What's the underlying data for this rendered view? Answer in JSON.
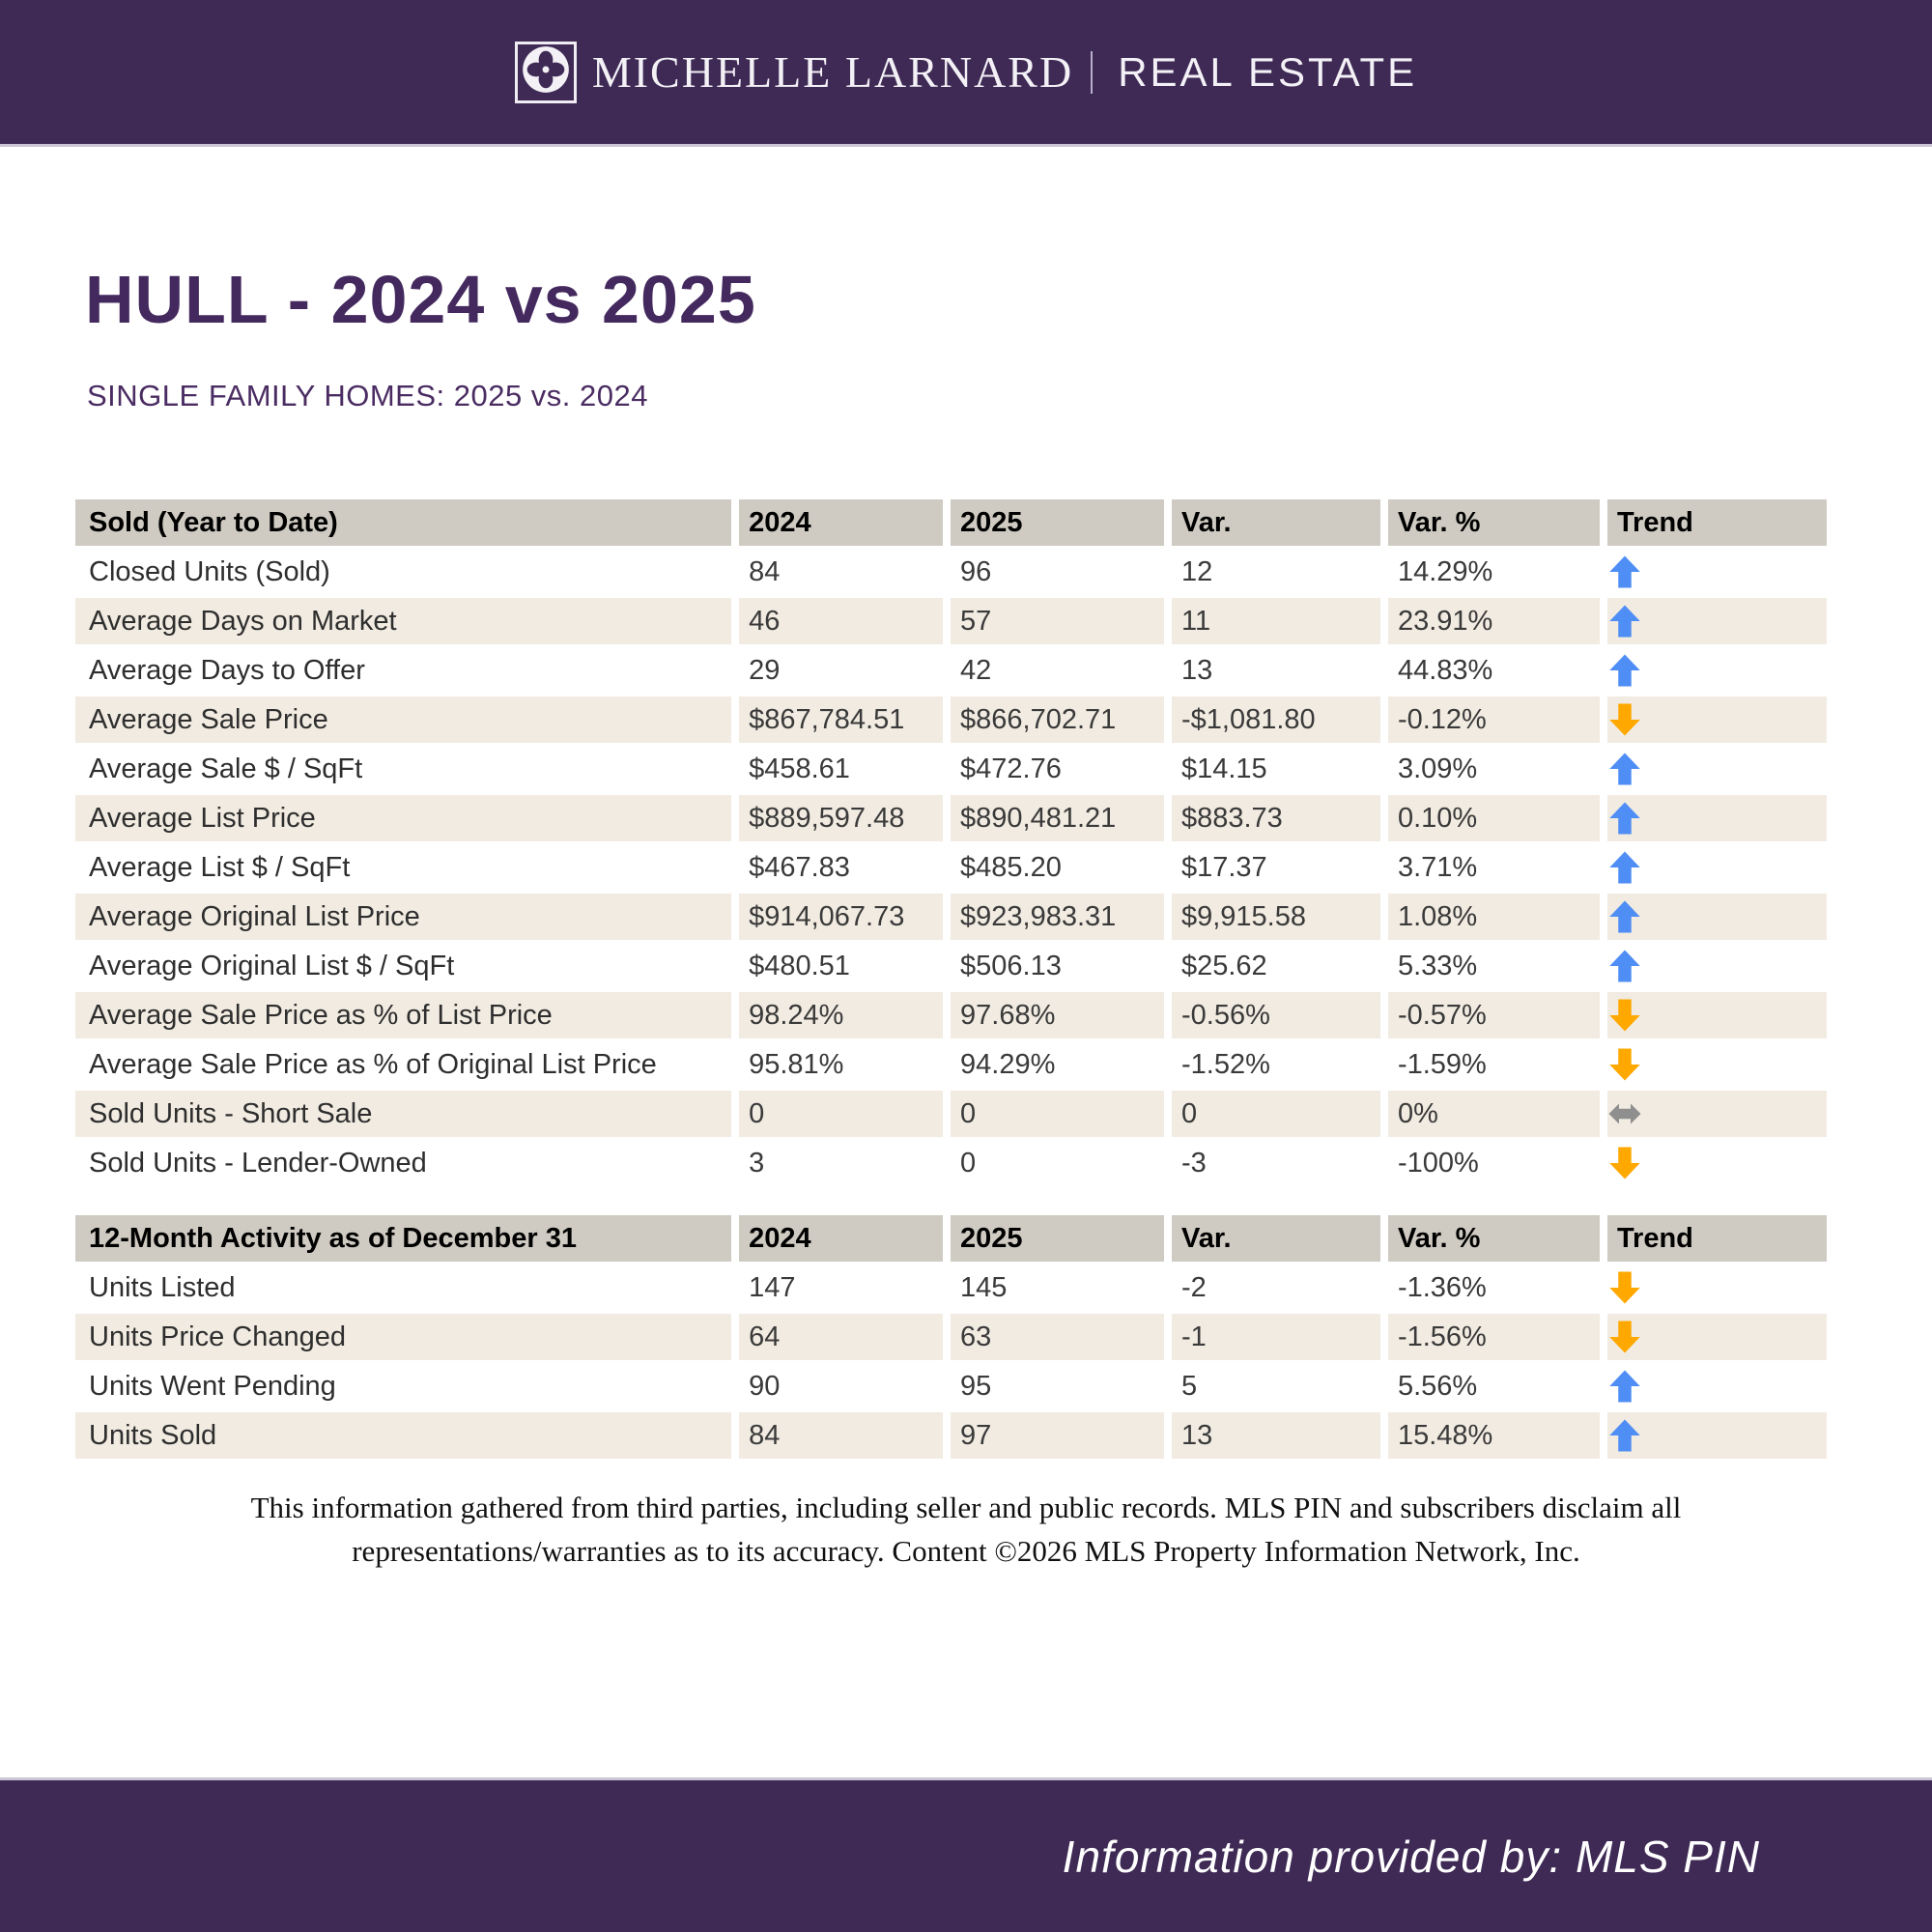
{
  "header": {
    "brand_serif": "MICHELLE LARNARD",
    "brand_sans": "REAL ESTATE",
    "logo_icon": "quatrefoil-clover-icon"
  },
  "page": {
    "title": "HULL - 2024 vs 2025",
    "subtitle": "SINGLE FAMILY HOMES: 2025 vs. 2024"
  },
  "colors": {
    "band_purple": "#3e2a55",
    "title_purple": "#44295e",
    "header_row_bg": "#cfcbc2",
    "alt_row_bg": "#f1ebe1",
    "trend_up": "#4f8ef5",
    "trend_down": "#ffa800",
    "trend_flat": "#8f8f8f"
  },
  "table": {
    "columns": [
      "2024",
      "2025",
      "Var.",
      "Var. %",
      "Trend"
    ],
    "sections": [
      {
        "title": "Sold (Year to Date)",
        "rows": [
          [
            "Closed Units (Sold)",
            "84",
            "96",
            "12",
            "14.29%",
            "up"
          ],
          [
            "Average Days on Market",
            "46",
            "57",
            "11",
            "23.91%",
            "up"
          ],
          [
            "Average Days to Offer",
            "29",
            "42",
            "13",
            "44.83%",
            "up"
          ],
          [
            "Average Sale Price",
            "$867,784.51",
            "$866,702.71",
            "-$1,081.80",
            "-0.12%",
            "down"
          ],
          [
            "Average Sale $ / SqFt",
            "$458.61",
            "$472.76",
            "$14.15",
            "3.09%",
            "up"
          ],
          [
            "Average List Price",
            "$889,597.48",
            "$890,481.21",
            "$883.73",
            "0.10%",
            "up"
          ],
          [
            "Average List $ / SqFt",
            "$467.83",
            "$485.20",
            "$17.37",
            "3.71%",
            "up"
          ],
          [
            "Average Original List Price",
            "$914,067.73",
            "$923,983.31",
            "$9,915.58",
            "1.08%",
            "up"
          ],
          [
            "Average Original List $ / SqFt",
            "$480.51",
            "$506.13",
            "$25.62",
            "5.33%",
            "up"
          ],
          [
            "Average Sale Price as % of List Price",
            "98.24%",
            "97.68%",
            "-0.56%",
            "-0.57%",
            "down"
          ],
          [
            "Average Sale Price as % of Original List Price",
            "95.81%",
            "94.29%",
            "-1.52%",
            "-1.59%",
            "down"
          ],
          [
            "Sold Units - Short Sale",
            "0",
            "0",
            "0",
            "0%",
            "flat"
          ],
          [
            "Sold Units - Lender-Owned",
            "3",
            "0",
            "-3",
            "-100%",
            "down"
          ]
        ]
      },
      {
        "title": "12-Month Activity as of December 31",
        "rows": [
          [
            "Units Listed",
            "147",
            "145",
            "-2",
            "-1.36%",
            "down"
          ],
          [
            "Units Price Changed",
            "64",
            "63",
            "-1",
            "-1.56%",
            "down"
          ],
          [
            "Units Went Pending",
            "90",
            "95",
            "5",
            "5.56%",
            "up"
          ],
          [
            "Units Sold",
            "84",
            "97",
            "13",
            "15.48%",
            "up"
          ]
        ]
      }
    ]
  },
  "disclaimer": "This information gathered from third parties, including seller and public records. MLS PIN and subscribers disclaim all representations/warranties as to its accuracy. Content ©2026 MLS Property Information Network, Inc.",
  "footer": {
    "text": "Information provided by: MLS PIN"
  }
}
